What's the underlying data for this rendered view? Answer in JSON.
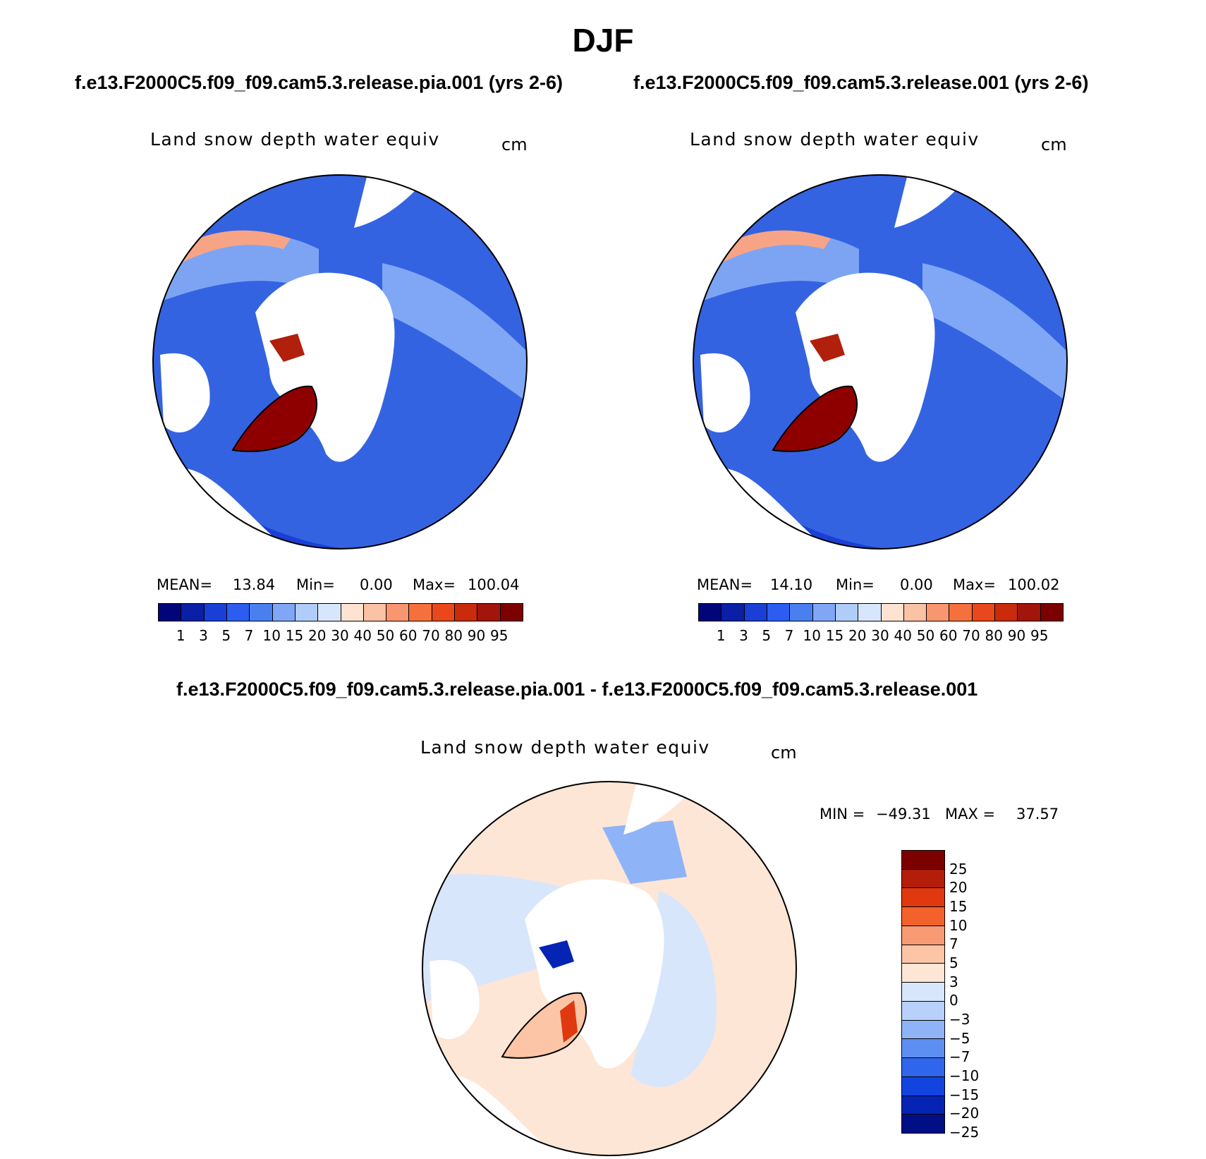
{
  "title": "DJF",
  "colors": {
    "abs_scale": [
      "#00057a",
      "#0a1ea6",
      "#1a3fd6",
      "#2d5df0",
      "#4a7ff0",
      "#7fa7f5",
      "#b0ccf8",
      "#d8e6fb",
      "#fde3d0",
      "#fbc2a5",
      "#f7966f",
      "#f4703d",
      "#e8481c",
      "#c92b0c",
      "#a1150a",
      "#7c0000"
    ],
    "diff_scale": [
      "#7c0000",
      "#b31d0a",
      "#e0380f",
      "#f4622b",
      "#f89a73",
      "#fbc5a6",
      "#fde6d6",
      "#d8e6fb",
      "#b8d1fa",
      "#8fb3f7",
      "#5d8ef2",
      "#2f66ec",
      "#1444e0",
      "#0524b4",
      "#000f86"
    ]
  },
  "panels": [
    {
      "case": "f.e13.F2000C5.f09_f09.cam5.3.release.pia.001 (yrs 2-6)",
      "variable": "Land snow depth water equiv",
      "units": "cm",
      "stats": {
        "mean_label": "MEAN=",
        "mean": "13.84",
        "min_label": "Min=",
        "min": "0.00",
        "max_label": "Max=",
        "max": "100.04"
      },
      "colorbar_labels": [
        "1",
        "3",
        "5",
        "7",
        "10",
        "15",
        "20",
        "30",
        "40",
        "50",
        "60",
        "70",
        "80",
        "90",
        "95"
      ]
    },
    {
      "case": "f.e13.F2000C5.f09_f09.cam5.3.release.001 (yrs 2-6)",
      "variable": "Land snow depth water equiv",
      "units": "cm",
      "stats": {
        "mean_label": "MEAN=",
        "mean": "14.10",
        "min_label": "Min=",
        "min": "0.00",
        "max_label": "Max=",
        "max": "100.02"
      },
      "colorbar_labels": [
        "1",
        "3",
        "5",
        "7",
        "10",
        "15",
        "20",
        "30",
        "40",
        "50",
        "60",
        "70",
        "80",
        "90",
        "95"
      ]
    }
  ],
  "difference": {
    "case": "f.e13.F2000C5.f09_f09.cam5.3.release.pia.001 - f.e13.F2000C5.f09_f09.cam5.3.release.001",
    "variable": "Land snow depth water equiv",
    "units": "cm",
    "stats": {
      "min_label": "MIN =",
      "min": "−49.31",
      "max_label": "MAX =",
      "max": "37.57"
    },
    "colorbar_labels": [
      "25",
      "20",
      "15",
      "10",
      "7",
      "5",
      "3",
      "0",
      "−3",
      "−5",
      "−7",
      "−10",
      "−15",
      "−20",
      "−25"
    ]
  }
}
